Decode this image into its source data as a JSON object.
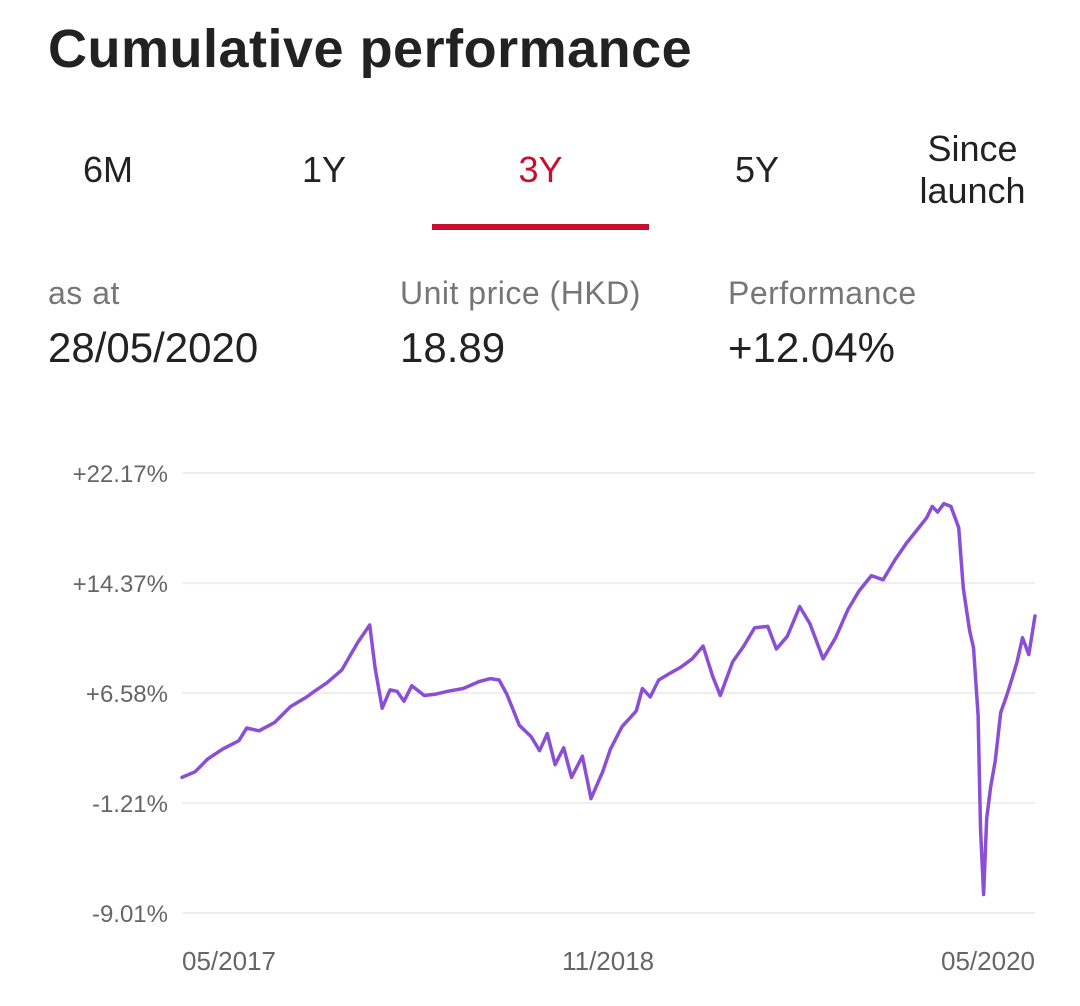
{
  "header": {
    "title": "Cumulative performance"
  },
  "tabs": [
    {
      "label": "6M",
      "active": false
    },
    {
      "label": "1Y",
      "active": false
    },
    {
      "label": "3Y",
      "active": true
    },
    {
      "label": "5Y",
      "active": false
    },
    {
      "label": "Since launch",
      "active": false
    }
  ],
  "stats": {
    "as_at_label": "as at",
    "as_at_value": "28/05/2020",
    "unit_price_label": "Unit price (HKD)",
    "unit_price_value": "18.89",
    "performance_label": "Performance",
    "performance_value": "+12.04%"
  },
  "colors": {
    "accent": "#c8102e",
    "line": "#8b4fd6",
    "grid": "#eeeeee"
  },
  "chart_data": {
    "type": "line",
    "title": "",
    "xlabel": "",
    "ylabel": "",
    "ylim": [
      -9.01,
      22.17
    ],
    "xlim": [
      "2017-05-29",
      "2020-05-28"
    ],
    "y_ticks": [
      {
        "label": "+22.17%",
        "value": 22.17
      },
      {
        "label": "+14.37%",
        "value": 14.37
      },
      {
        "label": "+6.58%",
        "value": 6.58
      },
      {
        "label": "-1.21%",
        "value": -1.21
      },
      {
        "label": "-9.01%",
        "value": -9.01
      }
    ],
    "x_ticks": [
      {
        "label": "05/2017",
        "value": "2017-05-29"
      },
      {
        "label": "11/2018",
        "value": "2018-11-27"
      },
      {
        "label": "05/2020",
        "value": "2020-05-28"
      }
    ],
    "grid": true,
    "legend": "none",
    "series": [
      {
        "name": "",
        "x": [
          "2017-05-29",
          "2017-06-15",
          "2017-07-01",
          "2017-07-20",
          "2017-08-10",
          "2017-08-20",
          "2017-09-05",
          "2017-09-25",
          "2017-10-15",
          "2017-11-05",
          "2017-11-15",
          "2017-12-01",
          "2017-12-20",
          "2018-01-10",
          "2018-01-25",
          "2018-02-01",
          "2018-02-10",
          "2018-02-20",
          "2018-03-01",
          "2018-03-10",
          "2018-03-20",
          "2018-04-05",
          "2018-04-20",
          "2018-05-05",
          "2018-05-25",
          "2018-06-15",
          "2018-06-29",
          "2018-07-10",
          "2018-07-20",
          "2018-08-05",
          "2018-08-20",
          "2018-08-31",
          "2018-09-10",
          "2018-09-20",
          "2018-10-01",
          "2018-10-11",
          "2018-10-25",
          "2018-11-05",
          "2018-11-20",
          "2018-11-30",
          "2018-12-15",
          "2019-01-02",
          "2019-01-10",
          "2019-01-20",
          "2019-01-31",
          "2019-02-15",
          "2019-02-28",
          "2019-03-15",
          "2019-03-29",
          "2019-04-10",
          "2019-04-20",
          "2019-05-06",
          "2019-05-20",
          "2019-06-03",
          "2019-06-20",
          "2019-07-01",
          "2019-07-15",
          "2019-07-31",
          "2019-08-13",
          "2019-08-30",
          "2019-09-15",
          "2019-10-01",
          "2019-10-15",
          "2019-10-31",
          "2019-11-15",
          "2019-11-30",
          "2019-12-15",
          "2019-12-31",
          "2020-01-10",
          "2020-01-17",
          "2020-01-24",
          "2020-02-01",
          "2020-02-10",
          "2020-02-20",
          "2020-02-26",
          "2020-03-05",
          "2020-03-10",
          "2020-03-16",
          "2020-03-19",
          "2020-03-23",
          "2020-03-27",
          "2020-04-01",
          "2020-04-07",
          "2020-04-14",
          "2020-04-21",
          "2020-04-28",
          "2020-05-05",
          "2020-05-12",
          "2020-05-20",
          "2020-05-28"
        ],
        "values": [
          0.6,
          1.0,
          1.9,
          2.6,
          3.2,
          4.1,
          3.9,
          4.5,
          5.6,
          6.3,
          6.7,
          7.3,
          8.2,
          10.2,
          11.4,
          8.3,
          5.5,
          6.8,
          6.7,
          6.0,
          7.1,
          6.4,
          6.5,
          6.7,
          6.9,
          7.4,
          7.6,
          7.5,
          6.5,
          4.3,
          3.5,
          2.5,
          3.7,
          1.5,
          2.7,
          0.6,
          2.1,
          -0.9,
          1.0,
          2.6,
          4.2,
          5.3,
          6.9,
          6.3,
          7.5,
          8.0,
          8.4,
          9.0,
          9.9,
          7.8,
          6.4,
          8.8,
          9.9,
          11.2,
          11.3,
          9.7,
          10.6,
          12.7,
          11.5,
          9.0,
          10.5,
          12.5,
          13.8,
          14.9,
          14.6,
          16.0,
          17.2,
          18.3,
          19.0,
          19.8,
          19.4,
          20.0,
          19.8,
          18.3,
          14.0,
          11.0,
          9.8,
          5.0,
          -3.0,
          -7.7,
          -2.3,
          -0.1,
          1.8,
          5.2,
          6.3,
          7.5,
          8.8,
          10.5,
          9.3,
          12.04
        ]
      }
    ]
  }
}
